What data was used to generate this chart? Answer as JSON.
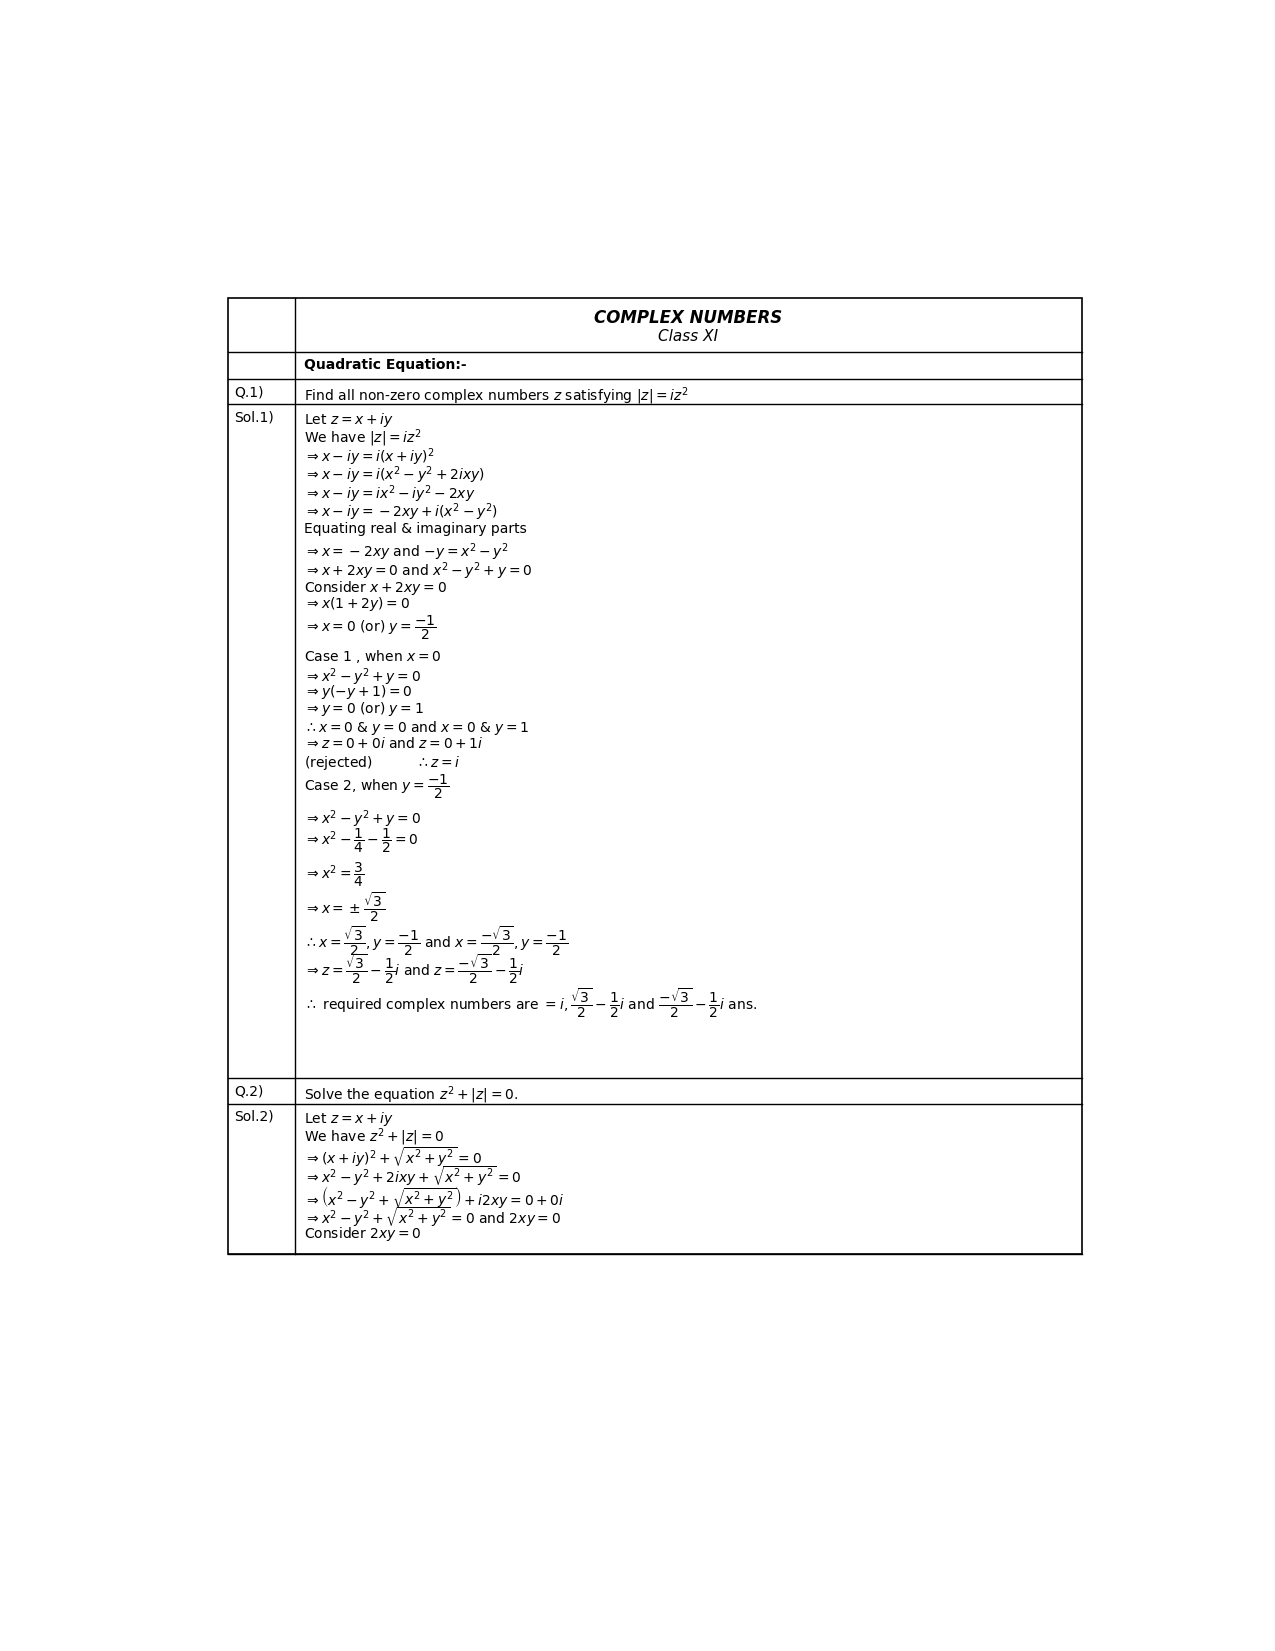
{
  "bg_color": "#ffffff",
  "title_line1": "COMPLEX NUMBERS",
  "title_line2": "Class XI",
  "font_size_title": 12,
  "font_size_body": 10.0,
  "lines_sol1": [
    "Let $z = x + iy$",
    "We have $|z| = iz^2$",
    "$\\Rightarrow x - iy = i(x + iy)^2$",
    "$\\Rightarrow x - iy = i(x^2 - y^2 + 2ixy)$",
    "$\\Rightarrow x - iy = ix^2 - iy^2 - 2xy$",
    "$\\Rightarrow x - iy = -2xy + i(x^2 - y^2)$",
    "Equating real & imaginary parts",
    "$\\Rightarrow x = -2xy$ and $-y = x^2 - y^2$",
    "$\\Rightarrow x + 2xy = 0$ and $x^2 - y^2 + y = 0$",
    "Consider $x + 2xy = 0$",
    "$\\Rightarrow x(1 + 2y) = 0$",
    "$\\Rightarrow x = 0$ (or) $y = \\dfrac{-1}{2}$",
    "Case 1 , when $x = 0$",
    "$\\Rightarrow x^2 - y^2 + y = 0$",
    "$\\Rightarrow y(-y + 1) = 0$",
    "$\\Rightarrow y = 0$ (or) $y = 1$",
    "$\\therefore x = 0$ & $y = 0$ and $x = 0$ & $y = 1$",
    "$\\Rightarrow z = 0 + 0i$ and $z = 0 + 1i$",
    "(rejected)          $\\therefore z = i$",
    "Case 2, when $y = \\dfrac{-1}{2}$",
    "$\\Rightarrow x^2 - y^2 + y = 0$",
    "$\\Rightarrow x^2 - \\dfrac{1}{4} - \\dfrac{1}{2} = 0$",
    "$\\Rightarrow x^2 = \\dfrac{3}{4}$",
    "$\\Rightarrow x = \\pm\\dfrac{\\sqrt{3}}{2}$",
    "$\\therefore x = \\dfrac{\\sqrt{3}}{2}, y = \\dfrac{-1}{2}$ and $x = \\dfrac{-\\sqrt{3}}{2}, y = \\dfrac{-1}{2}$",
    "$\\Rightarrow z = \\dfrac{\\sqrt{3}}{2} - \\dfrac{1}{2}i$ and $z = \\dfrac{-\\sqrt{3}}{2} - \\dfrac{1}{2}i$",
    "$\\therefore$ required complex numbers are $= i, \\dfrac{\\sqrt{3}}{2} - \\dfrac{1}{2}i$ and $\\dfrac{-\\sqrt{3}}{2} - \\dfrac{1}{2}i$ ans."
  ],
  "lines_sol2": [
    "Let $z = x + iy$",
    "We have $z^2 + |z| = 0$",
    "$\\Rightarrow (x + iy)^2 + \\sqrt{x^2 + y^2} = 0$",
    "$\\Rightarrow x^2 - y^2 + 2ixy + \\sqrt{x^2 + y^2} = 0$",
    "$\\Rightarrow \\left(x^2 - y^2 + \\sqrt{x^2 + y^2}\\right) + i2xy = 0 + 0i$",
    "$\\Rightarrow x^2 - y^2 + \\sqrt{x^2 + y^2} = 0$ and $2xy = 0$",
    "Consider $2xy = 0$"
  ]
}
